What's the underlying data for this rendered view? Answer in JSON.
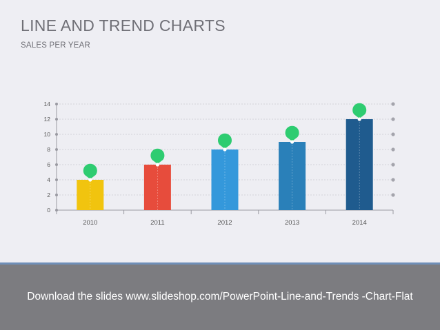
{
  "slide": {
    "title": "LINE AND TREND CHARTS",
    "subtitle": "SALES PER YEAR"
  },
  "banner": {
    "text": "Download the slides www.slideshop.com/PowerPoint-Line-and-Trends -Chart-Flat"
  },
  "chart_data": {
    "type": "bar",
    "categories": [
      "2010",
      "2011",
      "2012",
      "2013",
      "2014"
    ],
    "values": [
      4,
      6,
      8,
      9,
      12
    ],
    "bar_colors": [
      "#f1c40f",
      "#e74c3c",
      "#3498db",
      "#2a80b9",
      "#1f5b8e"
    ],
    "marker_color": "#2ecc71",
    "ylim": [
      0,
      14
    ],
    "yticks": [
      0,
      2,
      4,
      6,
      8,
      10,
      12,
      14
    ],
    "grid": true,
    "title": "",
    "xlabel": "",
    "ylabel": ""
  }
}
